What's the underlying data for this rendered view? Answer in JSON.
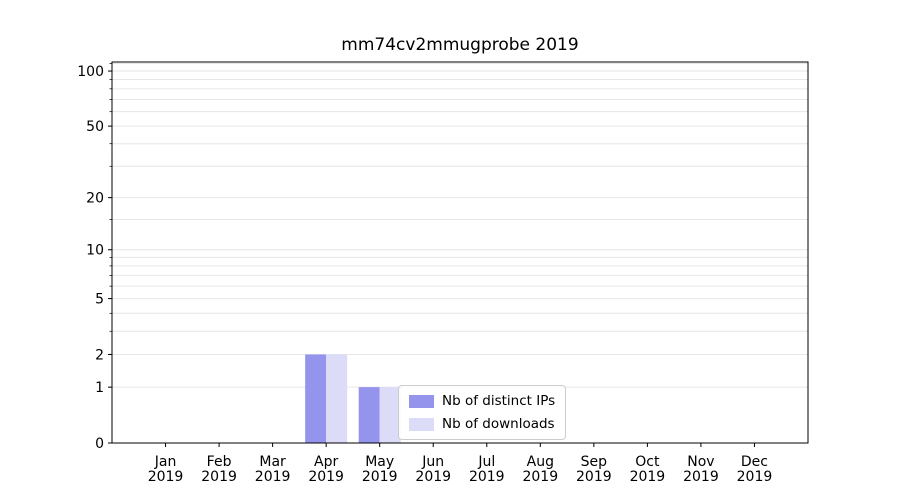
{
  "chart_data": {
    "type": "bar",
    "title": "mm74cv2mmugprobe 2019",
    "categories": [
      "Jan",
      "Feb",
      "Mar",
      "Apr",
      "May",
      "Jun",
      "Jul",
      "Aug",
      "Sep",
      "Oct",
      "Nov",
      "Dec"
    ],
    "year_label": "2019",
    "series": [
      {
        "name": "Nb of distinct IPs",
        "color": "#9494ec",
        "values": [
          0,
          0,
          0,
          2,
          1,
          0,
          0,
          0,
          0,
          0,
          0,
          0
        ]
      },
      {
        "name": "Nb of downloads",
        "color": "#dcdcf8",
        "values": [
          0,
          0,
          0,
          2,
          1,
          0,
          0,
          0,
          0,
          0,
          0,
          0
        ]
      }
    ],
    "y_ticks": [
      0,
      1,
      2,
      5,
      10,
      20,
      50,
      100
    ],
    "y_minor_ticks": [
      3,
      4,
      6,
      7,
      8,
      9,
      15,
      30,
      40,
      60,
      70,
      80,
      90,
      110
    ],
    "scale": "log10(1+v)",
    "ylim": [
      0,
      112
    ],
    "grid": true,
    "legend_position": "lower center",
    "colors": {
      "grid": "#e6e6e6",
      "axis": "#000000"
    }
  }
}
